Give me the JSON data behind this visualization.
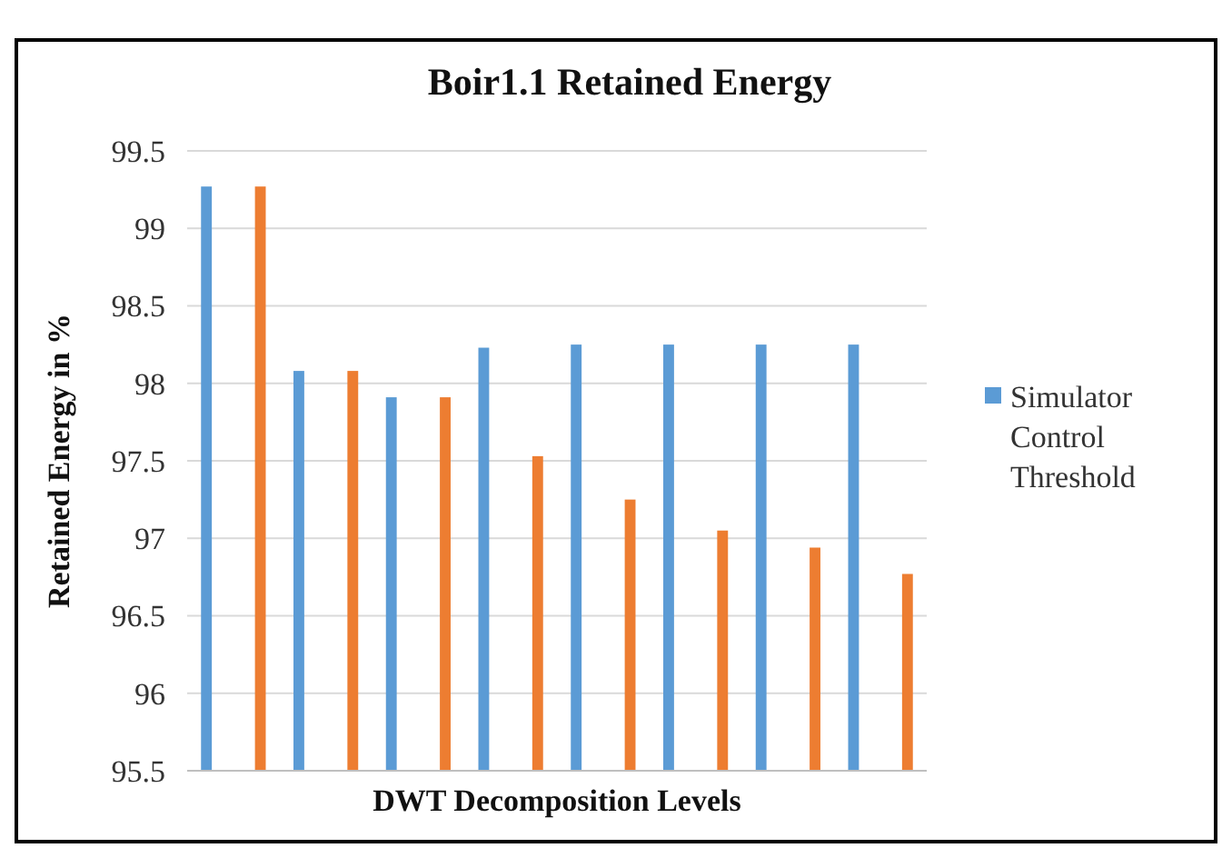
{
  "chart_data": {
    "type": "bar",
    "title": "Boir1.1 Retained Energy",
    "xlabel": "DWT Decomposition Levels",
    "ylabel": "Retained Energy in %",
    "categories": [
      null,
      null,
      null,
      null,
      null,
      null,
      null,
      null
    ],
    "series": [
      {
        "name": "Simulator Control Threshold",
        "color": "#5b9bd5",
        "values": [
          99.27,
          98.08,
          97.91,
          98.23,
          98.25,
          98.25,
          98.25,
          98.25
        ]
      },
      {
        "color": "#ed7d31",
        "values": [
          99.27,
          98.08,
          97.91,
          97.53,
          97.25,
          97.05,
          96.94,
          96.77
        ]
      }
    ],
    "ylim": [
      95.5,
      99.5
    ],
    "yticks": [
      95.5,
      96,
      96.5,
      97,
      97.5,
      98,
      98.5,
      99,
      99.5
    ],
    "grid": "y",
    "legend": "right"
  }
}
